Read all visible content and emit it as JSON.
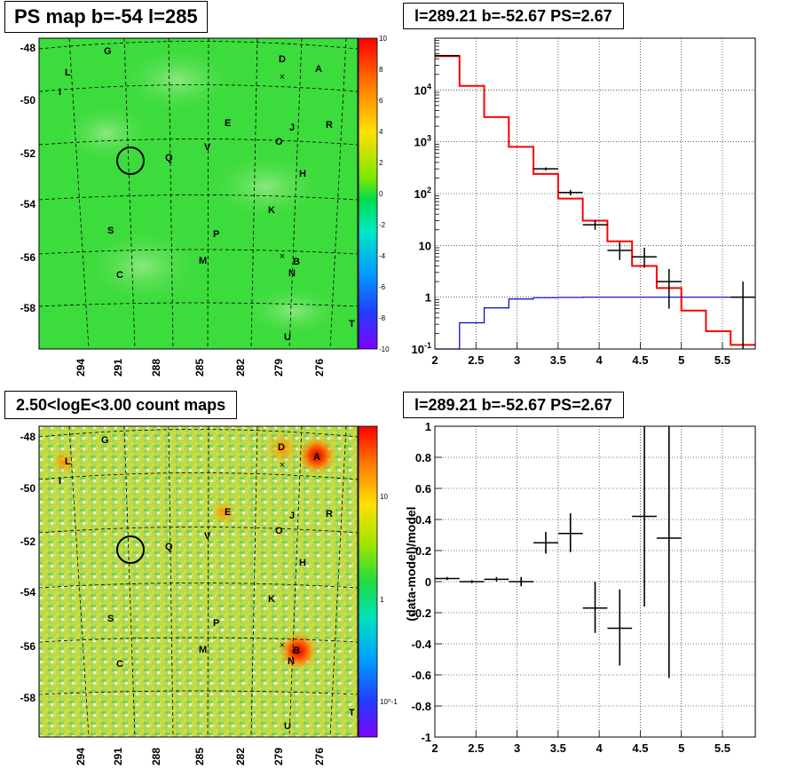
{
  "panels": {
    "tl_title": "PS map b=-54 l=285",
    "tr_title": "l=289.21 b=-52.67 PS=2.67",
    "bl_title": "2.50<logE<3.00 count maps",
    "br_title": "l=289.21 b=-52.67 PS=2.67"
  },
  "colors": {
    "map_green": "#3cdc3c",
    "counts_bg": "#b4d84a",
    "data_line": "#000000",
    "model_line": "#ff0000",
    "background_model": "#0000cc",
    "grid": "#000000"
  },
  "sky_maps": {
    "lat_ticks": [
      "-48",
      "-50",
      "-52",
      "-54",
      "-56",
      "-58"
    ],
    "lon_ticks": [
      "294",
      "291",
      "288",
      "285",
      "282",
      "279",
      "276"
    ],
    "ps_colorbar_ticks": [
      "10",
      "8",
      "6",
      "4",
      "2",
      "0",
      "-2",
      "-4",
      "-6",
      "-8",
      "-10"
    ],
    "count_colorbar_ticks": [
      "10",
      "1",
      "10^-1"
    ],
    "source_labels": [
      "G",
      "D",
      "A",
      "L",
      "I",
      "E",
      "J",
      "R",
      "O",
      "Q",
      "V",
      "H",
      "K",
      "S",
      "P",
      "M",
      "B",
      "N",
      "C",
      "T",
      "U"
    ],
    "marked_position": {
      "l": 289.21,
      "b": -52.67
    }
  },
  "chart_data": [
    {
      "type": "line",
      "panel": "spectrum",
      "title": "l=289.21 b=-52.67 PS=2.67",
      "xlabel": "",
      "ylabel": "",
      "xlim": [
        2,
        5.9
      ],
      "ylim": [
        0.1,
        100000
      ],
      "ylog": true,
      "grid": true,
      "x_ticks": [
        "2",
        "2.5",
        "3",
        "3.5",
        "4",
        "4.5",
        "5",
        "5.5"
      ],
      "y_ticks": [
        "10^-1",
        "1",
        "10",
        "10^2",
        "10^3",
        "10^4"
      ],
      "bin_edges": [
        2.0,
        2.3,
        2.6,
        2.9,
        3.2,
        3.5,
        3.8,
        4.1,
        4.4,
        4.7,
        5.0,
        5.3,
        5.6,
        5.9
      ],
      "series": [
        {
          "role": "model",
          "values": [
            45000,
            12000,
            3000,
            800,
            240,
            80,
            30,
            12,
            4,
            1.5,
            0.55,
            0.22,
            0.12
          ]
        },
        {
          "role": "background",
          "values": [
            0.1,
            0.32,
            0.62,
            0.92,
            0.98,
            0.99,
            1.0,
            1.0,
            1.0,
            1.0,
            1.0,
            1.0,
            1.0
          ]
        }
      ],
      "data_points": [
        {
          "x": 2.15,
          "y": 46000,
          "ylo": 45000,
          "yhi": 47000
        },
        {
          "x": 3.35,
          "y": 300,
          "ylo": 280,
          "yhi": 320
        },
        {
          "x": 3.65,
          "y": 105,
          "ylo": 92,
          "yhi": 118
        },
        {
          "x": 3.95,
          "y": 25,
          "ylo": 20,
          "yhi": 31
        },
        {
          "x": 4.25,
          "y": 8,
          "ylo": 5.2,
          "yhi": 11.5
        },
        {
          "x": 4.55,
          "y": 6,
          "ylo": 3.7,
          "yhi": 9
        },
        {
          "x": 4.85,
          "y": 2,
          "ylo": 0.6,
          "yhi": 3.5
        },
        {
          "x": 5.75,
          "y": 1,
          "ylo": 0.1,
          "yhi": 2
        }
      ]
    },
    {
      "type": "scatter",
      "panel": "residuals",
      "title": "l=289.21 b=-52.67 PS=2.67",
      "xlabel": "",
      "ylabel": "(data-model)/model",
      "xlim": [
        2,
        5.9
      ],
      "ylim": [
        -1,
        1
      ],
      "grid": true,
      "x_ticks": [
        "2",
        "2.5",
        "3",
        "3.5",
        "4",
        "4.5",
        "5",
        "5.5"
      ],
      "y_ticks": [
        "-1",
        "-0.8",
        "-0.6",
        "-0.4",
        "-0.2",
        "0",
        "0.2",
        "0.4",
        "0.6",
        "0.8",
        "1"
      ],
      "points": [
        {
          "x": 2.15,
          "y": 0.02,
          "ylo": 0.01,
          "yhi": 0.03
        },
        {
          "x": 2.45,
          "y": 0.0,
          "ylo": -0.01,
          "yhi": 0.01
        },
        {
          "x": 2.75,
          "y": 0.015,
          "ylo": 0.0,
          "yhi": 0.03
        },
        {
          "x": 3.05,
          "y": 0.0,
          "ylo": -0.03,
          "yhi": 0.03
        },
        {
          "x": 3.35,
          "y": 0.25,
          "ylo": 0.18,
          "yhi": 0.32
        },
        {
          "x": 3.65,
          "y": 0.31,
          "ylo": 0.19,
          "yhi": 0.44
        },
        {
          "x": 3.95,
          "y": -0.17,
          "ylo": -0.33,
          "yhi": 0.0
        },
        {
          "x": 4.25,
          "y": -0.3,
          "ylo": -0.54,
          "yhi": -0.05
        },
        {
          "x": 4.55,
          "y": 0.42,
          "ylo": -0.16,
          "yhi": 1.0
        },
        {
          "x": 4.85,
          "y": 0.28,
          "ylo": -0.62,
          "yhi": 1.0
        }
      ]
    }
  ]
}
